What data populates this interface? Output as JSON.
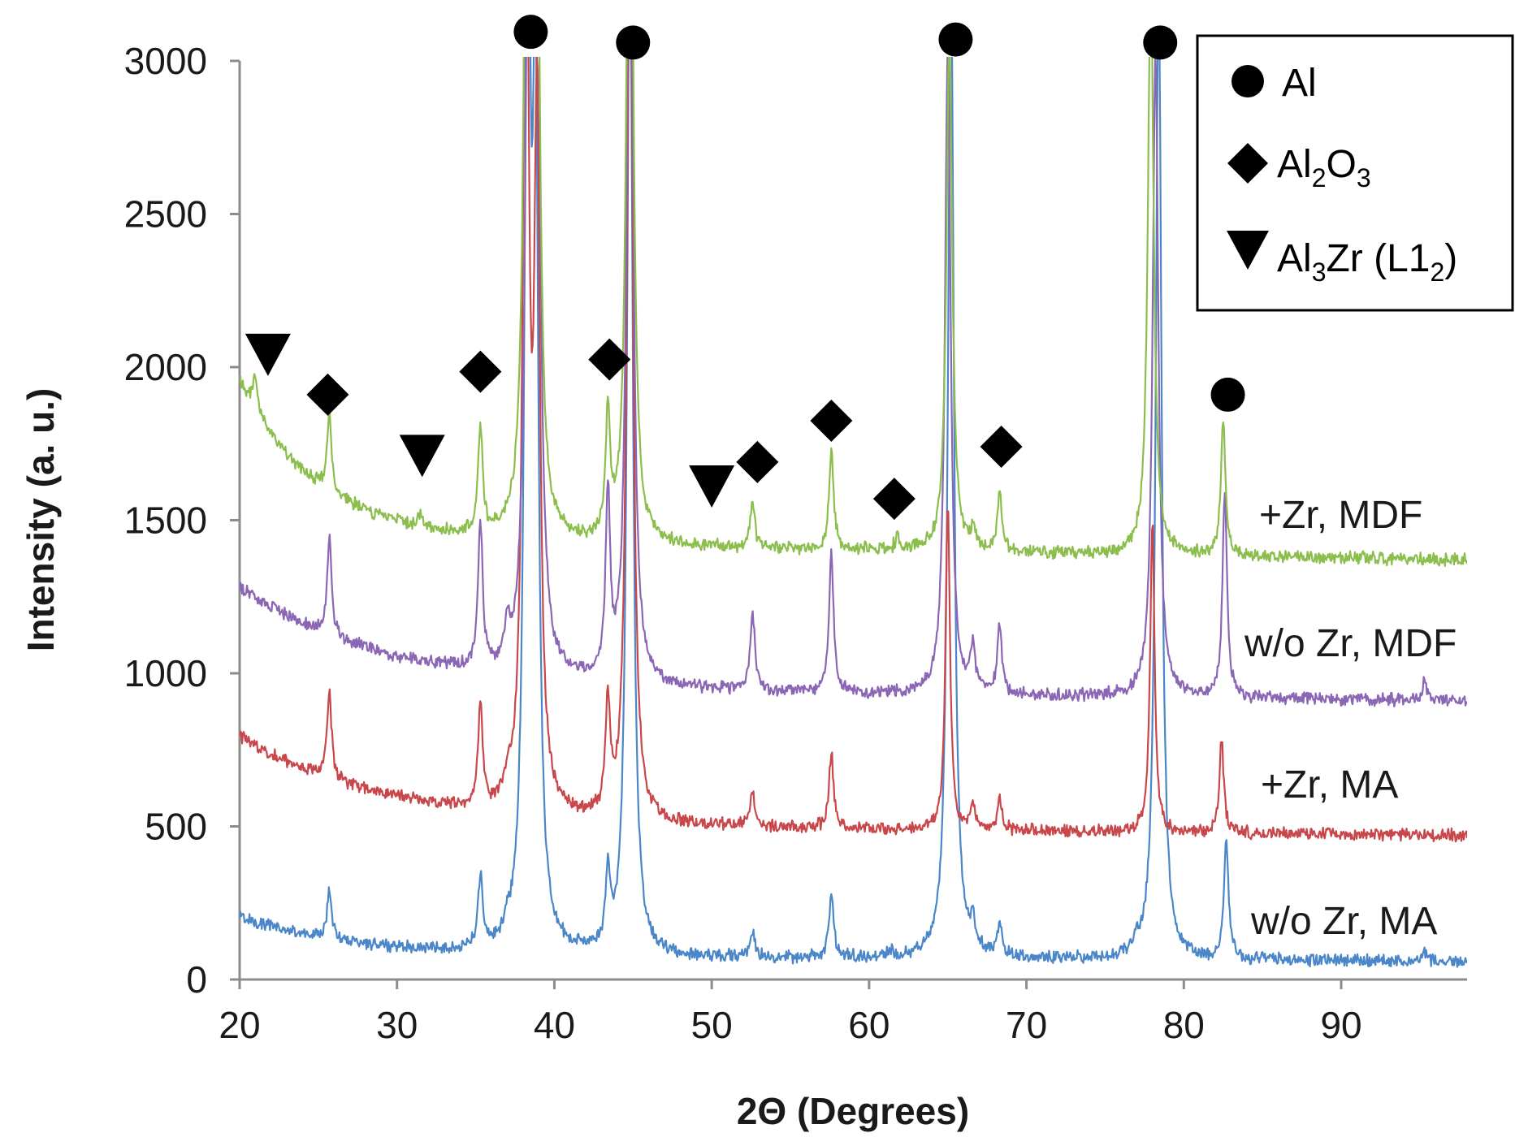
{
  "chart_data": {
    "type": "line",
    "xlabel": "2Θ (Degrees)",
    "ylabel": "Intensity (a. u.)",
    "xlim": [
      20,
      98
    ],
    "ylim": [
      0,
      3000
    ],
    "xticks": [
      20,
      30,
      40,
      50,
      60,
      70,
      80,
      90
    ],
    "yticks": [
      0,
      500,
      1000,
      1500,
      2000,
      2500,
      3000
    ],
    "grid": false,
    "legend_position": "top-right",
    "legend": [
      {
        "symbol": "circle",
        "label": "Al"
      },
      {
        "symbol": "diamond",
        "label": "Al",
        "sub1": "2",
        "mid": "O",
        "sub2": "3"
      },
      {
        "symbol": "triangle-down",
        "label": "Al",
        "sub1": "3",
        "mid": "Zr (L1",
        "sub2": "2",
        "tail": ")"
      }
    ],
    "series": [
      {
        "name": "w/o Zr, MA",
        "color": "#4a86c8",
        "baseline_start": 190,
        "baseline_end": 60,
        "decay_width": 7,
        "peaks": [
          [
            25.7,
            160
          ],
          [
            35.3,
            230
          ],
          [
            37.0,
            40
          ],
          [
            38.3,
            3500
          ],
          [
            38.8,
            2600
          ],
          [
            43.4,
            230
          ],
          [
            44.8,
            3400
          ],
          [
            52.6,
            80
          ],
          [
            57.6,
            210
          ],
          [
            61.3,
            20
          ],
          [
            65.2,
            3300
          ],
          [
            66.6,
            90
          ],
          [
            68.3,
            100
          ],
          [
            77.0,
            30
          ],
          [
            78.4,
            3200
          ],
          [
            82.7,
            390
          ],
          [
            95.3,
            30
          ]
        ]
      },
      {
        "name": "+Zr, MA",
        "color": "#c8474b",
        "baseline_start": 760,
        "baseline_end": 470,
        "decay_width": 9,
        "peaks": [
          [
            25.7,
            280
          ],
          [
            35.3,
            330
          ],
          [
            37.0,
            60
          ],
          [
            38.2,
            3200
          ],
          [
            38.9,
            2200
          ],
          [
            43.4,
            360
          ],
          [
            44.8,
            3200
          ],
          [
            52.6,
            110
          ],
          [
            57.6,
            250
          ],
          [
            65.0,
            1070
          ],
          [
            66.6,
            90
          ],
          [
            68.3,
            110
          ],
          [
            78.0,
            1020
          ],
          [
            82.4,
            300
          ]
        ]
      },
      {
        "name": "w/o Zr, MDF",
        "color": "#8a66b4",
        "baseline_start": 1240,
        "baseline_end": 910,
        "decay_width": 9,
        "peaks": [
          [
            25.7,
            330
          ],
          [
            35.3,
            480
          ],
          [
            37.0,
            120
          ],
          [
            38.4,
            3200
          ],
          [
            38.9,
            2400
          ],
          [
            43.4,
            600
          ],
          [
            44.8,
            3100
          ],
          [
            52.6,
            260
          ],
          [
            57.6,
            450
          ],
          [
            65.0,
            2100
          ],
          [
            66.6,
            150
          ],
          [
            68.3,
            220
          ],
          [
            78.2,
            2100
          ],
          [
            82.6,
            680
          ],
          [
            95.3,
            60
          ]
        ]
      },
      {
        "name": "+Zr, MDF",
        "color": "#8cbe4e",
        "baseline_start": 1890,
        "baseline_end": 1370,
        "decay_width": 5,
        "peaks": [
          [
            21.0,
            120
          ],
          [
            25.7,
            250
          ],
          [
            31.5,
            40
          ],
          [
            35.3,
            350
          ],
          [
            38.3,
            3200
          ],
          [
            38.9,
            2000
          ],
          [
            43.4,
            400
          ],
          [
            44.8,
            3100
          ],
          [
            52.6,
            150
          ],
          [
            57.6,
            320
          ],
          [
            61.8,
            40
          ],
          [
            65.1,
            1700
          ],
          [
            66.6,
            60
          ],
          [
            68.3,
            200
          ],
          [
            77.9,
            1900
          ],
          [
            82.5,
            450
          ]
        ]
      }
    ],
    "series_labels": [
      "+Zr, MDF",
      "w/o Zr, MDF",
      "+Zr, MA",
      "w/o Zr, MA"
    ],
    "phase_markers": [
      {
        "phase": "Al3Zr (L12)",
        "symbol": "triangle-down",
        "x": 21.8,
        "y": 2040
      },
      {
        "phase": "Al2O3",
        "symbol": "diamond",
        "x": 25.6,
        "y": 1910
      },
      {
        "phase": "Al3Zr (L12)",
        "symbol": "triangle-down",
        "x": 31.6,
        "y": 1710
      },
      {
        "phase": "Al2O3",
        "symbol": "diamond",
        "x": 35.3,
        "y": 1985
      },
      {
        "phase": "Al",
        "symbol": "circle",
        "x": 38.5,
        "y": 3095
      },
      {
        "phase": "Al2O3",
        "symbol": "diamond",
        "x": 43.5,
        "y": 2025
      },
      {
        "phase": "Al",
        "symbol": "circle",
        "x": 45.0,
        "y": 3060
      },
      {
        "phase": "Al3Zr (L12)",
        "symbol": "triangle-down",
        "x": 50.0,
        "y": 1610
      },
      {
        "phase": "Al2O3",
        "symbol": "diamond",
        "x": 52.9,
        "y": 1690
      },
      {
        "phase": "Al2O3",
        "symbol": "diamond",
        "x": 57.6,
        "y": 1825
      },
      {
        "phase": "Al2O3",
        "symbol": "diamond",
        "x": 61.6,
        "y": 1570
      },
      {
        "phase": "Al",
        "symbol": "circle",
        "x": 65.5,
        "y": 3070
      },
      {
        "phase": "Al2O3",
        "symbol": "diamond",
        "x": 68.4,
        "y": 1740
      },
      {
        "phase": "Al",
        "symbol": "circle",
        "x": 78.5,
        "y": 3060
      },
      {
        "phase": "Al",
        "symbol": "circle",
        "x": 82.8,
        "y": 1910
      }
    ]
  }
}
